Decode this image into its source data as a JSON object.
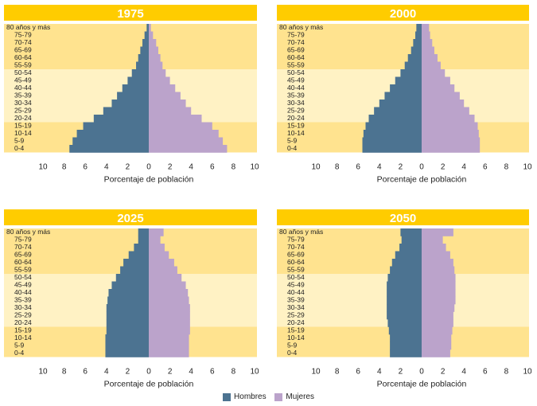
{
  "colors": {
    "title_bar": "#FFCC00",
    "band_dark": "#FFE38F",
    "band_light": "#FFF2C4",
    "hombres": "#4C7391",
    "mujeres": "#BBA3CB"
  },
  "legend": {
    "hombres": "Hombres",
    "mujeres": "Mujeres"
  },
  "chart_data": [
    {
      "type": "bar",
      "orientation": "horizontal-population-pyramid",
      "title": "1975",
      "xlabel": "Porcentaje de población",
      "xlim": [
        -10,
        10
      ],
      "xticks": [
        "10",
        "8",
        "6",
        "4",
        "2",
        "0",
        "2",
        "4",
        "6",
        "8",
        "10"
      ],
      "categories": [
        "80 años y más",
        "75-79",
        "70-74",
        "65-69",
        "60-64",
        "55-59",
        "50-54",
        "45-49",
        "40-44",
        "35-39",
        "30-34",
        "25-29",
        "20-24",
        "15-19",
        "10-14",
        "5-9",
        "0-4"
      ],
      "series": [
        {
          "name": "Hombres",
          "values": [
            0.2,
            0.4,
            0.6,
            0.8,
            1.0,
            1.2,
            1.6,
            2.0,
            2.5,
            3.0,
            3.5,
            4.3,
            5.2,
            6.2,
            6.8,
            7.2,
            7.5
          ]
        },
        {
          "name": "Mujeres",
          "values": [
            0.2,
            0.4,
            0.7,
            0.9,
            1.1,
            1.3,
            1.6,
            2.0,
            2.5,
            3.0,
            3.5,
            4.0,
            5.0,
            6.0,
            6.6,
            7.0,
            7.4
          ]
        }
      ]
    },
    {
      "type": "bar",
      "orientation": "horizontal-population-pyramid",
      "title": "2000",
      "xlabel": "Porcentaje de población",
      "xlim": [
        -10,
        10
      ],
      "xticks": [
        "10",
        "8",
        "6",
        "4",
        "2",
        "0",
        "2",
        "4",
        "6",
        "8",
        "10"
      ],
      "categories": [
        "80 años y más",
        "75-79",
        "70-74",
        "65-69",
        "60-64",
        "55-59",
        "50-54",
        "45-49",
        "40-44",
        "35-39",
        "30-34",
        "25-29",
        "20-24",
        "15-19",
        "10-14",
        "5-9",
        "0-4"
      ],
      "series": [
        {
          "name": "Hombres",
          "values": [
            0.5,
            0.6,
            0.8,
            1.0,
            1.3,
            1.6,
            2.0,
            2.5,
            3.0,
            3.5,
            4.0,
            4.5,
            5.0,
            5.3,
            5.5,
            5.6,
            5.6
          ]
        },
        {
          "name": "Mujeres",
          "values": [
            0.7,
            0.8,
            1.0,
            1.2,
            1.5,
            1.8,
            2.2,
            2.7,
            3.1,
            3.6,
            4.0,
            4.5,
            5.0,
            5.3,
            5.4,
            5.5,
            5.5
          ]
        }
      ]
    },
    {
      "type": "bar",
      "orientation": "horizontal-population-pyramid",
      "title": "2025",
      "xlabel": "Porcentaje de población",
      "xlim": [
        -10,
        10
      ],
      "xticks": [
        "10",
        "8",
        "6",
        "4",
        "2",
        "0",
        "2",
        "4",
        "6",
        "8",
        "10"
      ],
      "categories": [
        "80 años y más",
        "75-79",
        "70-74",
        "65-69",
        "60-64",
        "55-59",
        "50-54",
        "45-49",
        "40-44",
        "35-39",
        "30-34",
        "25-29",
        "20-24",
        "15-19",
        "10-14",
        "5-9",
        "0-4"
      ],
      "series": [
        {
          "name": "Hombres",
          "values": [
            1.0,
            1.0,
            1.4,
            1.9,
            2.4,
            2.7,
            3.1,
            3.5,
            3.8,
            3.9,
            4.0,
            4.0,
            4.0,
            4.0,
            4.1,
            4.1,
            4.1
          ]
        },
        {
          "name": "Mujeres",
          "values": [
            1.4,
            1.1,
            1.5,
            1.9,
            2.4,
            2.7,
            3.1,
            3.5,
            3.7,
            3.8,
            3.9,
            3.9,
            3.9,
            3.9,
            3.8,
            3.8,
            3.8
          ]
        }
      ]
    },
    {
      "type": "bar",
      "orientation": "horizontal-population-pyramid",
      "title": "2050",
      "xlabel": "Porcentaje de población",
      "xlim": [
        -10,
        10
      ],
      "xticks": [
        "10",
        "8",
        "6",
        "4",
        "2",
        "0",
        "2",
        "4",
        "6",
        "8",
        "10"
      ],
      "categories": [
        "80 años y más",
        "75-79",
        "70-74",
        "65-69",
        "60-64",
        "55-59",
        "50-54",
        "45-49",
        "40-44",
        "35-39",
        "30-34",
        "25-29",
        "20-24",
        "15-19",
        "10-14",
        "5-9",
        "0-4"
      ],
      "series": [
        {
          "name": "Hombres",
          "values": [
            2.0,
            1.9,
            2.1,
            2.5,
            2.8,
            3.0,
            3.2,
            3.3,
            3.3,
            3.3,
            3.3,
            3.3,
            3.2,
            3.1,
            3.0,
            3.0,
            3.0
          ]
        },
        {
          "name": "Mujeres",
          "values": [
            3.0,
            2.0,
            2.3,
            2.7,
            3.0,
            3.1,
            3.2,
            3.2,
            3.2,
            3.2,
            3.1,
            3.0,
            3.0,
            2.9,
            2.8,
            2.8,
            2.7
          ]
        }
      ]
    }
  ]
}
